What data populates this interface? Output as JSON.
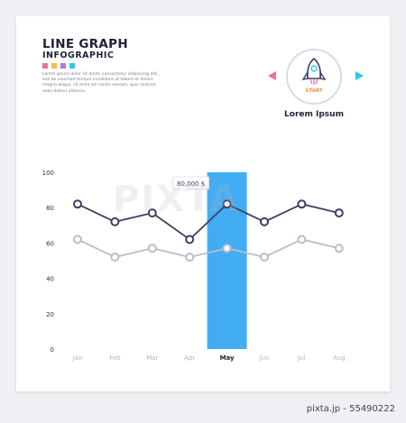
{
  "header": {
    "title": "LINE GRAPH",
    "subtitle": "INFOGRAPHIC",
    "body": "Lorem ipsum dolor sit amet, consectetur adipiscing elit, sed do eiusmod tempor incididunt ut labore et dolore magna aliqua. Ut enim ad minim veniam, quis nostrud exercitation ullamco."
  },
  "swatches": [
    "#f26b9a",
    "#ffb84d",
    "#a77be0",
    "#2fc6ee"
  ],
  "badge": {
    "label": "Lorem Ipsum",
    "icon": "rocket-icon",
    "icon_text": "START"
  },
  "watermark": "PIXTA",
  "footer_id": "pixta.jp - 55490222",
  "chart_data": {
    "type": "line",
    "title": "",
    "xlabel": "",
    "ylabel": "",
    "categories": [
      "Jan",
      "Feb",
      "Mar",
      "Apr",
      "May",
      "Jun",
      "Jul",
      "Aug"
    ],
    "ylim": [
      0,
      100
    ],
    "yticks": [
      0,
      20,
      40,
      60,
      80,
      100
    ],
    "grid": false,
    "series": [
      {
        "values": [
          82,
          72,
          77,
          62,
          82,
          72,
          82,
          77
        ],
        "color": "#3d4160"
      },
      {
        "values": [
          62,
          52,
          57,
          52,
          57,
          52,
          62,
          57
        ],
        "color": "#b8bdcc"
      }
    ],
    "highlight": {
      "category": "May",
      "color": "#39a9f2"
    },
    "annotation": {
      "category": "May",
      "text": "80,000 $"
    }
  }
}
